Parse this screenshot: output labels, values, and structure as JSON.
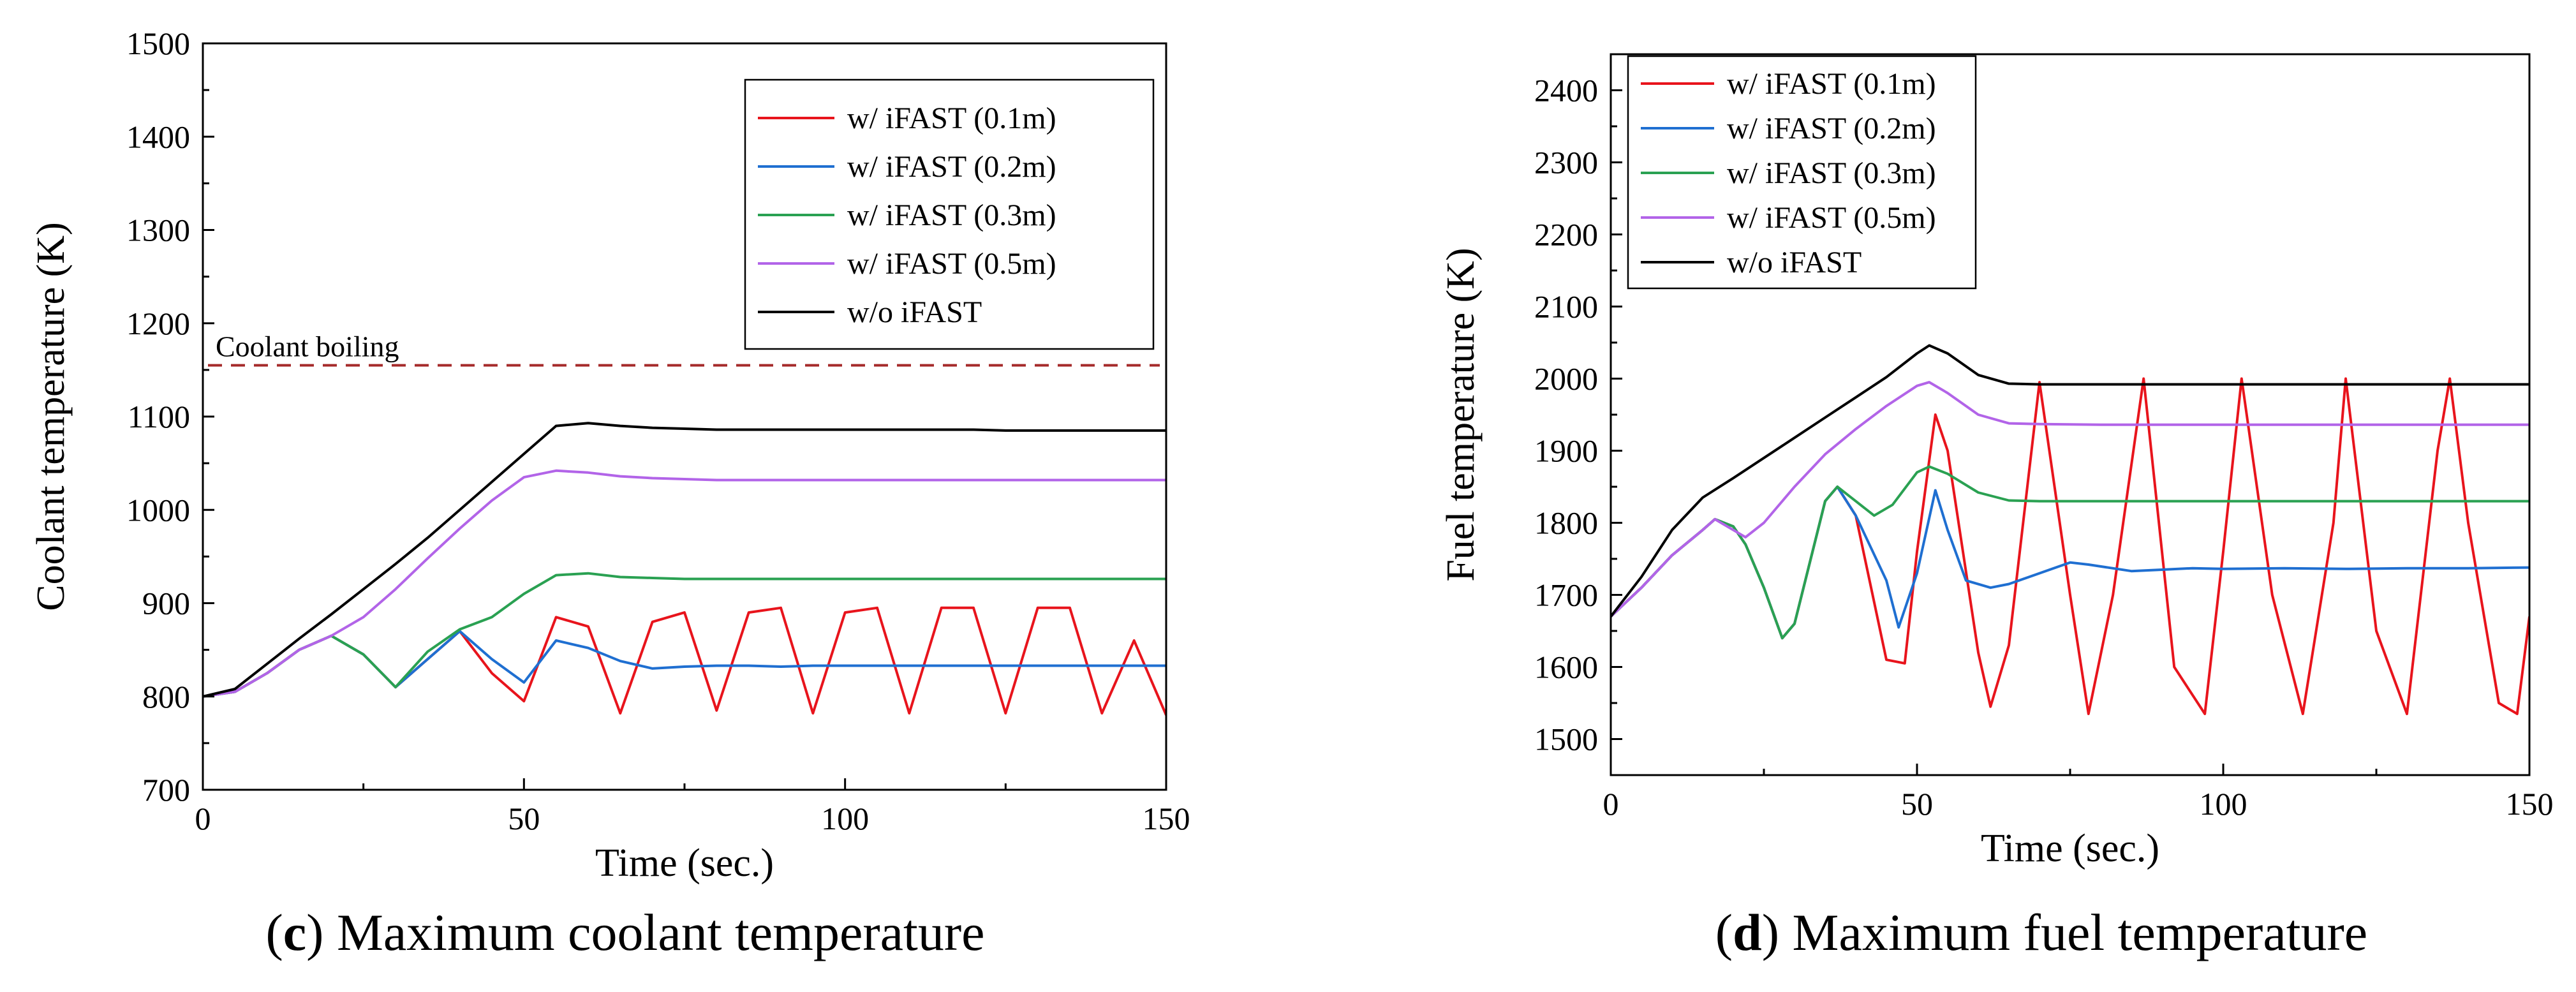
{
  "chart_data": [
    {
      "type": "line",
      "panel": "c",
      "caption_letter": "c",
      "caption_text": " Maximum coolant temperature",
      "xlabel": "Time (sec.)",
      "ylabel": "Coolant temperature (K)",
      "xlim": [
        0,
        150
      ],
      "ylim": [
        700,
        1500
      ],
      "xticks": [
        0,
        50,
        100,
        150
      ],
      "yticks": [
        700,
        800,
        900,
        1000,
        1100,
        1200,
        1300,
        1400,
        1500
      ],
      "legend_position": "top-right",
      "annotations": [
        {
          "type": "hline",
          "y": 1155,
          "style": "dashed",
          "color": "#a52a2a",
          "label": "Coolant boiling"
        }
      ],
      "series": [
        {
          "name": "w/ iFAST (0.1m)",
          "color": "#e8141c",
          "x": [
            0,
            5,
            10,
            15,
            20,
            25,
            30,
            35,
            40,
            45,
            50,
            55,
            60,
            65,
            70,
            75,
            80,
            85,
            90,
            95,
            100,
            105,
            110,
            115,
            120,
            125,
            130,
            135,
            140,
            145,
            150
          ],
          "y": [
            800,
            805,
            825,
            850,
            865,
            845,
            810,
            840,
            870,
            825,
            795,
            885,
            875,
            782,
            880,
            890,
            785,
            890,
            895,
            782,
            890,
            895,
            782,
            895,
            895,
            782,
            895,
            895,
            782,
            860,
            780
          ]
        },
        {
          "name": "w/ iFAST (0.2m)",
          "color": "#1f6fd1",
          "x": [
            0,
            5,
            10,
            15,
            20,
            25,
            30,
            35,
            40,
            45,
            50,
            55,
            60,
            65,
            70,
            75,
            80,
            85,
            90,
            95,
            100,
            105,
            110,
            115,
            120,
            125,
            130,
            135,
            140,
            145,
            150
          ],
          "y": [
            800,
            805,
            825,
            850,
            865,
            845,
            810,
            840,
            870,
            840,
            815,
            860,
            852,
            838,
            830,
            832,
            833,
            833,
            832,
            833,
            833,
            833,
            833,
            833,
            833,
            833,
            833,
            833,
            833,
            833,
            833
          ]
        },
        {
          "name": "w/ iFAST (0.3m)",
          "color": "#2aa152",
          "x": [
            0,
            5,
            10,
            15,
            20,
            25,
            30,
            35,
            40,
            45,
            50,
            55,
            60,
            65,
            70,
            75,
            80,
            85,
            90,
            95,
            100,
            105,
            110,
            115,
            120,
            125,
            130,
            135,
            140,
            145,
            150
          ],
          "y": [
            800,
            805,
            825,
            850,
            865,
            845,
            810,
            848,
            872,
            885,
            910,
            930,
            932,
            928,
            927,
            926,
            926,
            926,
            926,
            926,
            926,
            926,
            926,
            926,
            926,
            926,
            926,
            926,
            926,
            926,
            926
          ]
        },
        {
          "name": "w/ iFAST (0.5m)",
          "color": "#b264e8",
          "x": [
            0,
            5,
            10,
            15,
            20,
            25,
            30,
            35,
            40,
            45,
            50,
            55,
            60,
            65,
            70,
            75,
            80,
            85,
            90,
            95,
            100,
            105,
            110,
            115,
            120,
            125,
            130,
            135,
            140,
            145,
            150
          ],
          "y": [
            800,
            805,
            825,
            850,
            865,
            885,
            915,
            948,
            980,
            1010,
            1035,
            1042,
            1040,
            1036,
            1034,
            1033,
            1032,
            1032,
            1032,
            1032,
            1032,
            1032,
            1032,
            1032,
            1032,
            1032,
            1032,
            1032,
            1032,
            1032,
            1032
          ]
        },
        {
          "name": "w/o iFAST",
          "color": "#000000",
          "x": [
            0,
            5,
            10,
            15,
            20,
            25,
            30,
            35,
            40,
            45,
            50,
            55,
            60,
            65,
            70,
            75,
            80,
            85,
            90,
            95,
            100,
            105,
            110,
            115,
            120,
            125,
            130,
            135,
            140,
            145,
            150
          ],
          "y": [
            800,
            808,
            835,
            862,
            888,
            915,
            942,
            970,
            1000,
            1030,
            1060,
            1090,
            1093,
            1090,
            1088,
            1087,
            1086,
            1086,
            1086,
            1086,
            1086,
            1086,
            1086,
            1086,
            1086,
            1085,
            1085,
            1085,
            1085,
            1085,
            1085
          ]
        }
      ]
    },
    {
      "type": "line",
      "panel": "d",
      "caption_letter": "d",
      "caption_text": " Maximum fuel temperature",
      "xlabel": "Time (sec.)",
      "ylabel": "Fuel temperature (K)",
      "xlim": [
        0,
        150
      ],
      "ylim": [
        1450,
        2450
      ],
      "xticks": [
        0,
        50,
        100,
        150
      ],
      "yticks": [
        1500,
        1600,
        1700,
        1800,
        1900,
        2000,
        2100,
        2200,
        2300,
        2400
      ],
      "legend_position": "top-left",
      "annotations": [],
      "series": [
        {
          "name": "w/ iFAST (0.1m)",
          "color": "#e8141c",
          "x": [
            0,
            5,
            10,
            15,
            17,
            20,
            22,
            25,
            28,
            30,
            35,
            37,
            40,
            45,
            48,
            50,
            53,
            55,
            60,
            62,
            65,
            70,
            75,
            78,
            82,
            87,
            92,
            97,
            100,
            103,
            108,
            113,
            118,
            120,
            125,
            130,
            135,
            137,
            140,
            145,
            148,
            150
          ],
          "y": [
            1670,
            1710,
            1755,
            1790,
            1805,
            1795,
            1770,
            1710,
            1640,
            1660,
            1830,
            1850,
            1810,
            1610,
            1605,
            1760,
            1950,
            1900,
            1620,
            1545,
            1630,
            1995,
            1700,
            1535,
            1700,
            2000,
            1600,
            1535,
            1760,
            2000,
            1700,
            1535,
            1800,
            2000,
            1650,
            1535,
            1900,
            2000,
            1800,
            1550,
            1535,
            1670
          ]
        },
        {
          "name": "w/ iFAST (0.2m)",
          "color": "#1f6fd1",
          "x": [
            0,
            5,
            10,
            15,
            17,
            20,
            22,
            25,
            28,
            30,
            35,
            37,
            40,
            45,
            47,
            50,
            53,
            55,
            58,
            62,
            65,
            70,
            75,
            78,
            85,
            90,
            95,
            100,
            110,
            120,
            130,
            140,
            150
          ],
          "y": [
            1670,
            1710,
            1755,
            1790,
            1805,
            1795,
            1770,
            1710,
            1640,
            1660,
            1830,
            1850,
            1810,
            1720,
            1655,
            1730,
            1845,
            1790,
            1720,
            1710,
            1715,
            1730,
            1745,
            1742,
            1733,
            1735,
            1737,
            1736,
            1737,
            1736,
            1737,
            1737,
            1738
          ]
        },
        {
          "name": "w/ iFAST (0.3m)",
          "color": "#2aa152",
          "x": [
            0,
            5,
            10,
            15,
            17,
            20,
            22,
            25,
            28,
            30,
            35,
            37,
            40,
            43,
            46,
            50,
            52,
            55,
            60,
            65,
            70,
            80,
            90,
            100,
            110,
            120,
            130,
            140,
            150
          ],
          "y": [
            1670,
            1710,
            1755,
            1790,
            1805,
            1795,
            1770,
            1710,
            1640,
            1660,
            1830,
            1850,
            1830,
            1810,
            1825,
            1870,
            1878,
            1868,
            1842,
            1831,
            1830,
            1830,
            1830,
            1830,
            1830,
            1830,
            1830,
            1830,
            1830
          ]
        },
        {
          "name": "w/ iFAST (0.5m)",
          "color": "#b264e8",
          "x": [
            0,
            5,
            10,
            15,
            17,
            20,
            22,
            25,
            30,
            35,
            40,
            45,
            50,
            52,
            55,
            60,
            65,
            70,
            80,
            90,
            100,
            110,
            120,
            130,
            140,
            150
          ],
          "y": [
            1670,
            1710,
            1755,
            1790,
            1805,
            1790,
            1780,
            1800,
            1850,
            1895,
            1930,
            1962,
            1990,
            1995,
            1980,
            1950,
            1938,
            1937,
            1936,
            1936,
            1936,
            1936,
            1936,
            1936,
            1936,
            1936
          ]
        },
        {
          "name": "w/o iFAST",
          "color": "#000000",
          "x": [
            0,
            5,
            10,
            15,
            20,
            25,
            30,
            35,
            40,
            45,
            50,
            52,
            55,
            60,
            65,
            70,
            80,
            90,
            100,
            110,
            120,
            130,
            140,
            150
          ],
          "y": [
            1670,
            1725,
            1790,
            1835,
            1862,
            1890,
            1918,
            1946,
            1974,
            2002,
            2035,
            2046,
            2035,
            2005,
            1993,
            1992,
            1992,
            1992,
            1992,
            1992,
            1992,
            1992,
            1992,
            1992
          ]
        }
      ]
    }
  ]
}
